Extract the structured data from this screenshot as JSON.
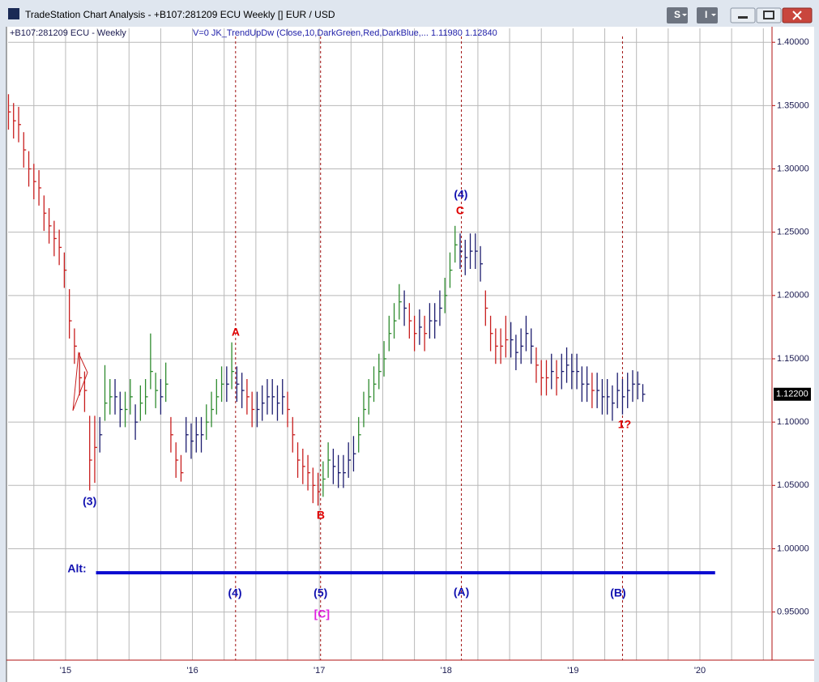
{
  "window": {
    "title": "TradeStation Chart Analysis - +B107:281209 ECU Weekly [] EUR / USD",
    "buttons": [
      "S",
      "I"
    ]
  },
  "chart_data": {
    "type": "ohlc",
    "symbol_label": "+B107:281209 ECU - Weekly",
    "indicator_label": "V=0  JK_TrendUpDw  (Close,10,DarkGreen,Red,DarkBlue,...   1.11980  1.12840",
    "palette": [
      "#c81e1e",
      "#2e8b2e",
      "#1c1c6e"
    ],
    "x": [
      2014.55,
      2014.59,
      2014.63,
      2014.67,
      2014.71,
      2014.75,
      2014.79,
      2014.83,
      2014.87,
      2014.91,
      2014.95,
      2014.99,
      2015.03,
      2015.07,
      2015.11,
      2015.15,
      2015.19,
      2015.23,
      2015.27,
      2015.31,
      2015.35,
      2015.39,
      2015.43,
      2015.47,
      2015.51,
      2015.55,
      2015.59,
      2015.63,
      2015.67,
      2015.71,
      2015.75,
      2015.79,
      2015.83,
      2015.87,
      2015.91,
      2015.95,
      2015.99,
      2016.03,
      2016.07,
      2016.11,
      2016.15,
      2016.19,
      2016.23,
      2016.27,
      2016.31,
      2016.35,
      2016.39,
      2016.43,
      2016.47,
      2016.51,
      2016.55,
      2016.59,
      2016.63,
      2016.67,
      2016.71,
      2016.75,
      2016.79,
      2016.83,
      2016.87,
      2016.91,
      2016.95,
      2016.99,
      2017.03,
      2017.07,
      2017.11,
      2017.15,
      2017.19,
      2017.23,
      2017.27,
      2017.31,
      2017.35,
      2017.39,
      2017.43,
      2017.47,
      2017.51,
      2017.55,
      2017.59,
      2017.63,
      2017.67,
      2017.71,
      2017.75,
      2017.79,
      2017.83,
      2017.87,
      2017.91,
      2017.95,
      2017.99,
      2018.03,
      2018.07,
      2018.11,
      2018.15,
      2018.19,
      2018.23,
      2018.27,
      2018.31,
      2018.35,
      2018.39,
      2018.43,
      2018.47,
      2018.51,
      2018.55,
      2018.59,
      2018.63,
      2018.67,
      2018.71,
      2018.75,
      2018.79,
      2018.83,
      2018.87,
      2018.91,
      2018.95,
      2018.99,
      2019.03,
      2019.07,
      2019.11,
      2019.15,
      2019.19,
      2019.23,
      2019.27,
      2019.31,
      2019.35,
      2019.39,
      2019.43,
      2019.47,
      2019.51,
      2019.55
    ],
    "high": [
      1.359,
      1.352,
      1.349,
      1.329,
      1.314,
      1.304,
      1.299,
      1.279,
      1.269,
      1.259,
      1.252,
      1.234,
      1.205,
      1.174,
      1.155,
      1.14,
      1.105,
      1.105,
      1.104,
      1.145,
      1.134,
      1.134,
      1.124,
      1.124,
      1.134,
      1.114,
      1.129,
      1.134,
      1.17,
      1.139,
      1.134,
      1.147,
      1.104,
      1.084,
      1.074,
      1.104,
      1.099,
      1.104,
      1.104,
      1.114,
      1.124,
      1.134,
      1.144,
      1.144,
      1.163,
      1.144,
      1.139,
      1.134,
      1.124,
      1.124,
      1.129,
      1.134,
      1.134,
      1.129,
      1.134,
      1.124,
      1.104,
      1.084,
      1.079,
      1.074,
      1.064,
      1.06,
      1.069,
      1.084,
      1.079,
      1.074,
      1.074,
      1.084,
      1.089,
      1.104,
      1.124,
      1.134,
      1.144,
      1.154,
      1.164,
      1.184,
      1.194,
      1.209,
      1.204,
      1.194,
      1.184,
      1.189,
      1.184,
      1.194,
      1.194,
      1.204,
      1.214,
      1.234,
      1.255,
      1.249,
      1.244,
      1.249,
      1.249,
      1.239,
      1.204,
      1.184,
      1.174,
      1.174,
      1.184,
      1.179,
      1.169,
      1.174,
      1.184,
      1.174,
      1.159,
      1.149,
      1.149,
      1.154,
      1.149,
      1.154,
      1.159,
      1.154,
      1.154,
      1.144,
      1.144,
      1.139,
      1.139,
      1.134,
      1.134,
      1.129,
      1.139,
      1.134,
      1.139,
      1.141,
      1.14,
      1.13
    ],
    "low": [
      1.331,
      1.324,
      1.321,
      1.301,
      1.286,
      1.276,
      1.271,
      1.251,
      1.241,
      1.231,
      1.224,
      1.206,
      1.166,
      1.146,
      1.121,
      1.108,
      1.046,
      1.052,
      1.076,
      1.101,
      1.106,
      1.106,
      1.096,
      1.096,
      1.106,
      1.086,
      1.101,
      1.106,
      1.126,
      1.111,
      1.106,
      1.116,
      1.076,
      1.056,
      1.053,
      1.076,
      1.071,
      1.076,
      1.076,
      1.086,
      1.096,
      1.106,
      1.116,
      1.116,
      1.126,
      1.116,
      1.111,
      1.106,
      1.096,
      1.096,
      1.101,
      1.106,
      1.106,
      1.101,
      1.106,
      1.096,
      1.076,
      1.056,
      1.051,
      1.046,
      1.036,
      1.034,
      1.041,
      1.056,
      1.051,
      1.048,
      1.048,
      1.056,
      1.061,
      1.076,
      1.096,
      1.106,
      1.116,
      1.126,
      1.136,
      1.156,
      1.166,
      1.181,
      1.176,
      1.166,
      1.156,
      1.161,
      1.156,
      1.166,
      1.166,
      1.176,
      1.186,
      1.206,
      1.226,
      1.221,
      1.216,
      1.221,
      1.221,
      1.211,
      1.176,
      1.156,
      1.146,
      1.146,
      1.151,
      1.151,
      1.141,
      1.146,
      1.156,
      1.146,
      1.131,
      1.121,
      1.121,
      1.126,
      1.121,
      1.126,
      1.131,
      1.126,
      1.126,
      1.116,
      1.116,
      1.111,
      1.111,
      1.106,
      1.106,
      1.101,
      1.111,
      1.106,
      1.111,
      1.116,
      1.118,
      1.116
    ],
    "close": [
      1.345,
      1.338,
      1.335,
      1.315,
      1.3,
      1.29,
      1.285,
      1.265,
      1.255,
      1.245,
      1.238,
      1.22,
      1.18,
      1.16,
      1.135,
      1.125,
      1.07,
      1.08,
      1.09,
      1.115,
      1.12,
      1.12,
      1.11,
      1.11,
      1.12,
      1.1,
      1.115,
      1.12,
      1.14,
      1.125,
      1.12,
      1.13,
      1.09,
      1.07,
      1.06,
      1.09,
      1.085,
      1.09,
      1.09,
      1.1,
      1.11,
      1.12,
      1.13,
      1.13,
      1.14,
      1.13,
      1.125,
      1.12,
      1.11,
      1.11,
      1.115,
      1.12,
      1.12,
      1.115,
      1.12,
      1.11,
      1.09,
      1.07,
      1.065,
      1.06,
      1.05,
      1.045,
      1.055,
      1.07,
      1.065,
      1.06,
      1.06,
      1.07,
      1.075,
      1.09,
      1.11,
      1.12,
      1.13,
      1.14,
      1.15,
      1.17,
      1.18,
      1.195,
      1.19,
      1.18,
      1.17,
      1.175,
      1.17,
      1.18,
      1.18,
      1.19,
      1.2,
      1.22,
      1.24,
      1.235,
      1.23,
      1.235,
      1.235,
      1.225,
      1.19,
      1.17,
      1.16,
      1.16,
      1.165,
      1.165,
      1.155,
      1.16,
      1.17,
      1.16,
      1.145,
      1.135,
      1.135,
      1.14,
      1.135,
      1.14,
      1.145,
      1.14,
      1.14,
      1.13,
      1.13,
      1.125,
      1.125,
      1.12,
      1.12,
      1.115,
      1.125,
      1.12,
      1.125,
      1.13,
      1.13,
      1.122
    ],
    "color_index": [
      0,
      0,
      0,
      0,
      0,
      0,
      0,
      0,
      0,
      0,
      0,
      0,
      0,
      0,
      0,
      0,
      0,
      0,
      2,
      1,
      1,
      2,
      2,
      1,
      1,
      2,
      1,
      1,
      1,
      1,
      2,
      1,
      0,
      0,
      0,
      2,
      2,
      2,
      2,
      1,
      1,
      1,
      1,
      2,
      1,
      2,
      2,
      0,
      0,
      2,
      2,
      2,
      2,
      2,
      2,
      0,
      0,
      0,
      0,
      0,
      0,
      0,
      1,
      1,
      2,
      2,
      2,
      2,
      2,
      1,
      1,
      1,
      1,
      1,
      1,
      1,
      1,
      1,
      2,
      0,
      0,
      2,
      0,
      2,
      2,
      2,
      1,
      1,
      1,
      2,
      2,
      2,
      2,
      2,
      0,
      0,
      0,
      0,
      0,
      2,
      2,
      2,
      2,
      2,
      0,
      0,
      0,
      2,
      0,
      2,
      2,
      2,
      2,
      2,
      2,
      0,
      2,
      2,
      2,
      2,
      2,
      2,
      2,
      2,
      2,
      2
    ],
    "xlim": [
      2014.547,
      2020.562
    ],
    "ylim": [
      0.912,
      1.411
    ],
    "xticks": [
      {
        "value": 2015,
        "label": "'15"
      },
      {
        "value": 2016,
        "label": "'16"
      },
      {
        "value": 2017,
        "label": "'17"
      },
      {
        "value": 2018,
        "label": "'18"
      },
      {
        "value": 2019,
        "label": "'19"
      },
      {
        "value": 2020,
        "label": "'20"
      }
    ],
    "x_minor_ticks": [
      2014.75,
      2015.25,
      2015.5,
      2015.75,
      2016.25,
      2016.5,
      2016.75,
      2017.25,
      2017.5,
      2017.75,
      2018.25,
      2018.5,
      2018.75,
      2019.25,
      2019.5,
      2019.75,
      2020.25,
      2020.5
    ],
    "yticks": [
      {
        "value": 0.95,
        "label": "0.95000"
      },
      {
        "value": 1.0,
        "label": "1.00000"
      },
      {
        "value": 1.05,
        "label": "1.05000"
      },
      {
        "value": 1.1,
        "label": "1.10000"
      },
      {
        "value": 1.15,
        "label": "1.15000"
      },
      {
        "value": 1.2,
        "label": "1.20000"
      },
      {
        "value": 1.25,
        "label": "1.25000"
      },
      {
        "value": 1.3,
        "label": "1.30000"
      },
      {
        "value": 1.35,
        "label": "1.35000"
      },
      {
        "value": 1.4,
        "label": "1.40000"
      }
    ],
    "grid": true,
    "last_price": {
      "value": 1.122,
      "label": "1.12200"
    },
    "vlines": {
      "color": "#a01010",
      "x": [
        2016.34,
        2017.01,
        2018.12,
        2019.39
      ]
    },
    "hline": {
      "value": 0.981,
      "x": [
        2015.24,
        2020.12
      ],
      "color": "#0a0ad0"
    },
    "annotations": [
      {
        "text": "A",
        "x": 2016.341,
        "y": 1.1705,
        "color": "#e00000"
      },
      {
        "text": "B",
        "x": 2017.011,
        "y": 1.026,
        "color": "#e00000"
      },
      {
        "text": "C",
        "x": 2018.11,
        "y": 1.2664,
        "color": "#e00000"
      },
      {
        "text": "(4)",
        "x": 2018.116,
        "y": 1.2792,
        "color": "#1010b0"
      },
      {
        "text": "(3)",
        "x": 2015.19,
        "y": 1.0368,
        "color": "#1010b0"
      },
      {
        "text": "1?",
        "x": 2019.406,
        "y": 1.0976,
        "color": "#e00000"
      },
      {
        "text": "(4)",
        "x": 2016.335,
        "y": 0.9646,
        "color": "#1010b0"
      },
      {
        "text": "(5)",
        "x": 2017.01,
        "y": 0.9646,
        "color": "#1010b0"
      },
      {
        "text": "(A)",
        "x": 2018.12,
        "y": 0.9652,
        "color": "#1010b0"
      },
      {
        "text": "(B)",
        "x": 2019.355,
        "y": 0.9646,
        "color": "#1010b0"
      },
      {
        "text": "[C]",
        "x": 2017.02,
        "y": 0.948,
        "color": "#e020e0"
      },
      {
        "text": "Alt:",
        "x": 2015.09,
        "y": 0.9838,
        "color": "#1010b0"
      }
    ]
  }
}
